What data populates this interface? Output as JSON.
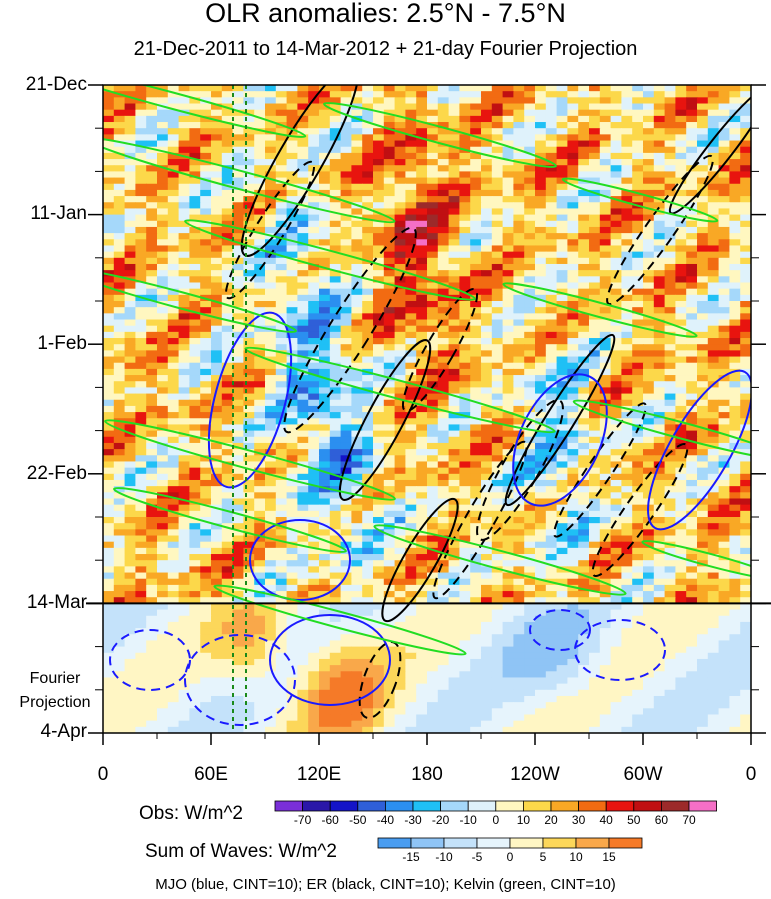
{
  "chart_data": {
    "type": "heatmap",
    "title": "OLR anomalies: 2.5°N - 7.5°N",
    "subtitle": "21-Dec-2011 to 14-Mar-2012 + 21-day Fourier Projection",
    "x_ticks": [
      "0",
      "60E",
      "120E",
      "180",
      "120W",
      "60W",
      "0"
    ],
    "x_values": [
      0,
      60,
      120,
      180,
      240,
      300,
      360
    ],
    "y_ticks": [
      "21-Dec",
      "11-Jan",
      "1-Feb",
      "22-Feb",
      "14-Mar",
      "4-Apr"
    ],
    "y_days": [
      0,
      21,
      42,
      63,
      84,
      105
    ],
    "projection_start_day": 84,
    "projection_label_1": "Fourier",
    "projection_label_2": "Projection",
    "obs_label": "Obs: W/m^2",
    "obs_levels": [
      "-70",
      "-60",
      "-50",
      "-40",
      "-30",
      "-20",
      "-10",
      "0",
      "10",
      "20",
      "30",
      "40",
      "50",
      "60",
      "70"
    ],
    "obs_colors": [
      "#7a2fd8",
      "#2a17a8",
      "#1414c8",
      "#2f5fd8",
      "#2b8ff0",
      "#1fc0f5",
      "#a5d8fa",
      "#dff2fb",
      "#fff7c0",
      "#fcd84a",
      "#f9a825",
      "#f26b12",
      "#e8140f",
      "#c00f12",
      "#9c2a2a",
      "#f56fc6"
    ],
    "waves_label": "Sum of Waves: W/m^2",
    "wave_levels": [
      "-15",
      "-10",
      "-5",
      "0",
      "5",
      "10",
      "15"
    ],
    "wave_colors": [
      "#4a9df0",
      "#8fc4f5",
      "#c4e2fa",
      "#e6f4fc",
      "#fff6c4",
      "#fcd75a",
      "#f9a84a",
      "#f57a28"
    ],
    "footnote": "MJO (blue, CINT=10); ER (black, CINT=10); Kelvin (green, CINT=10)",
    "mjo_color": "#1a1aff",
    "er_color": "#000000",
    "kelvin_color": "#22dd22",
    "grid": false
  }
}
